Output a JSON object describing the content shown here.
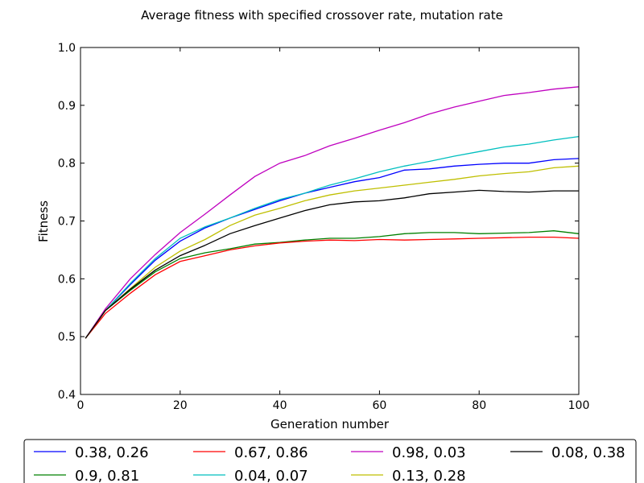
{
  "chart_data": {
    "type": "line",
    "title": "Average fitness with specified crossover rate, mutation rate",
    "xlabel": "Generation number",
    "ylabel": "Fitness",
    "xlim": [
      0,
      100
    ],
    "ylim": [
      0.4,
      1.0
    ],
    "xticks": [
      "0",
      "20",
      "40",
      "60",
      "80",
      "100"
    ],
    "yticks": [
      "0.4",
      "0.5",
      "0.6",
      "0.7",
      "0.8",
      "0.9",
      "1.0"
    ],
    "grid": false,
    "legend_position": "bottom",
    "x": [
      1,
      5,
      10,
      15,
      20,
      25,
      30,
      35,
      40,
      45,
      50,
      55,
      60,
      65,
      70,
      75,
      80,
      85,
      90,
      95,
      100
    ],
    "series": [
      {
        "name": "0.38, 0.26",
        "color": "#0000ff",
        "values": [
          0.497,
          0.545,
          0.59,
          0.632,
          0.665,
          0.688,
          0.705,
          0.72,
          0.735,
          0.748,
          0.758,
          0.768,
          0.775,
          0.788,
          0.79,
          0.795,
          0.798,
          0.8,
          0.8,
          0.806,
          0.808
        ]
      },
      {
        "name": "0.9, 0.81",
        "color": "#008000",
        "values": [
          0.497,
          0.545,
          0.58,
          0.612,
          0.635,
          0.645,
          0.652,
          0.66,
          0.663,
          0.667,
          0.67,
          0.67,
          0.673,
          0.678,
          0.68,
          0.68,
          0.678,
          0.679,
          0.68,
          0.683,
          0.678
        ]
      },
      {
        "name": "0.67, 0.86",
        "color": "#ff0000",
        "values": [
          0.497,
          0.54,
          0.575,
          0.607,
          0.63,
          0.64,
          0.65,
          0.657,
          0.662,
          0.665,
          0.667,
          0.666,
          0.668,
          0.667,
          0.668,
          0.669,
          0.67,
          0.671,
          0.672,
          0.672,
          0.67
        ]
      },
      {
        "name": "0.04, 0.07",
        "color": "#00bfbf",
        "values": [
          0.497,
          0.545,
          0.592,
          0.635,
          0.67,
          0.69,
          0.705,
          0.722,
          0.737,
          0.748,
          0.762,
          0.773,
          0.785,
          0.795,
          0.803,
          0.812,
          0.82,
          0.828,
          0.833,
          0.84,
          0.846
        ]
      },
      {
        "name": "0.98, 0.03",
        "color": "#bf00bf",
        "values": [
          0.497,
          0.548,
          0.6,
          0.642,
          0.68,
          0.712,
          0.745,
          0.777,
          0.8,
          0.813,
          0.83,
          0.843,
          0.857,
          0.87,
          0.885,
          0.897,
          0.907,
          0.917,
          0.922,
          0.928,
          0.932
        ]
      },
      {
        "name": "0.13, 0.28",
        "color": "#bfbf00",
        "values": [
          0.497,
          0.545,
          0.583,
          0.62,
          0.648,
          0.668,
          0.692,
          0.71,
          0.722,
          0.735,
          0.745,
          0.752,
          0.757,
          0.762,
          0.767,
          0.772,
          0.778,
          0.782,
          0.785,
          0.792,
          0.795
        ]
      },
      {
        "name": "0.08, 0.38",
        "color": "#000000",
        "values": [
          0.497,
          0.545,
          0.582,
          0.615,
          0.64,
          0.658,
          0.678,
          0.692,
          0.705,
          0.718,
          0.728,
          0.733,
          0.735,
          0.74,
          0.747,
          0.75,
          0.753,
          0.751,
          0.75,
          0.752,
          0.752
        ]
      }
    ]
  }
}
